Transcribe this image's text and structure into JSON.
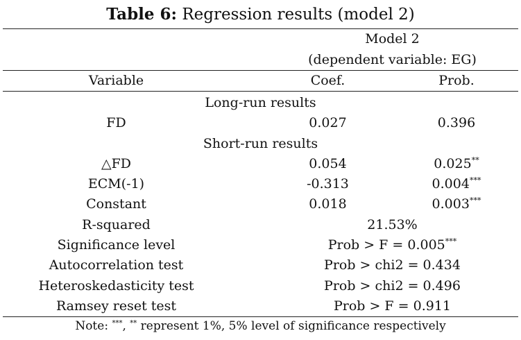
{
  "title": {
    "bold": "Table 6:",
    "rest": " Regression results (model 2)"
  },
  "header": {
    "model": "Model 2",
    "dependent": "(dependent variable: EG)",
    "col_variable": "Variable",
    "col_coef": "Coef.",
    "col_prob": "Prob."
  },
  "sections": {
    "long_run": "Long-run results",
    "short_run": "Short-run results"
  },
  "rows": {
    "fd": {
      "variable": "FD",
      "coef": "0.027",
      "prob": "0.396",
      "sig": ""
    },
    "dfd": {
      "variable": "△FD",
      "coef": "0.054",
      "prob": "0.025",
      "sig": "**"
    },
    "ecm": {
      "variable": "ECM(-1)",
      "coef": "-0.313",
      "prob": "0.004",
      "sig": "***"
    },
    "constant": {
      "variable": "Constant",
      "coef": "0.018",
      "prob": "0.003",
      "sig": "***"
    }
  },
  "stats": {
    "rsq": {
      "label": "R-squared",
      "value": "21.53%",
      "sig": ""
    },
    "sig": {
      "label": "Significance level",
      "value": "Prob > F = 0.005",
      "sig": "***"
    },
    "auto": {
      "label": "Autocorrelation test",
      "value": "Prob > chi2 = 0.434",
      "sig": ""
    },
    "hetero": {
      "label": "Heteroskedasticity test",
      "value": "Prob > chi2 = 0.496",
      "sig": ""
    },
    "ramsey": {
      "label": "Ramsey reset test",
      "value": "Prob > F = 0.911",
      "sig": ""
    }
  },
  "note": {
    "prefix": "Note: ",
    "sig1": "***",
    "sep": ", ",
    "sig2": "**",
    "text": " represent 1%, 5% level of significance respectively"
  }
}
